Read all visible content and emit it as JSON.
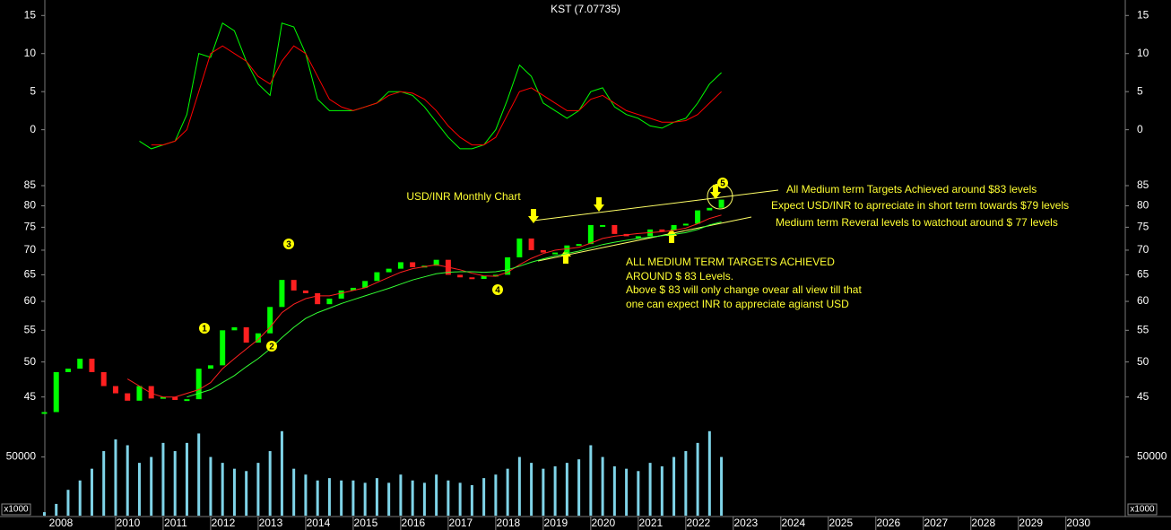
{
  "chart_data": [
    {
      "type": "line",
      "title": "KST (7.07735)",
      "x": [
        2008.5,
        2008.75,
        2009,
        2009.25,
        2009.5,
        2009.75,
        2010,
        2010.25,
        2010.5,
        2010.75,
        2011,
        2011.25,
        2011.5,
        2011.75,
        2012,
        2012.25,
        2012.5,
        2012.75,
        2013,
        2013.25,
        2013.5,
        2013.75,
        2014,
        2014.25,
        2014.5,
        2014.75,
        2015,
        2015.25,
        2015.5,
        2015.75,
        2016,
        2016.25,
        2016.5,
        2016.75,
        2017,
        2017.25,
        2017.5,
        2017.75,
        2018,
        2018.25,
        2018.5,
        2018.75,
        2019,
        2019.25,
        2019.5,
        2019.75,
        2020,
        2020.25,
        2020.5,
        2020.75,
        2021,
        2021.25,
        2021.5,
        2021.75,
        2022,
        2022.25,
        2022.5,
        2022.75
      ],
      "series": [
        {
          "color": "#00ff00",
          "values": [
            null,
            null,
            null,
            null,
            null,
            null,
            null,
            null,
            -1.5,
            -2.5,
            -2,
            -1.5,
            2,
            10,
            9.5,
            14,
            13,
            9,
            6,
            4.5,
            14,
            13.5,
            10,
            4,
            2.5,
            2.5,
            2.5,
            3,
            3.5,
            5,
            5,
            4.5,
            3,
            1,
            -1,
            -2.5,
            -2.5,
            -2,
            0,
            4,
            8.5,
            7,
            3.5,
            2.5,
            1.5,
            2.5,
            5,
            5.5,
            3,
            2,
            1.5,
            0.5,
            0.2,
            1,
            1.5,
            3.5,
            6,
            7.5
          ]
        },
        {
          "color": "#ff0000",
          "values": [
            null,
            null,
            null,
            null,
            null,
            null,
            null,
            null,
            null,
            -2,
            -2,
            -1.5,
            0,
            5,
            10,
            11,
            10,
            9,
            7,
            6,
            9,
            11,
            10,
            7,
            4,
            3,
            2.5,
            3,
            3.5,
            4.5,
            5,
            4.8,
            4,
            2.5,
            0.5,
            -1,
            -2,
            -2,
            -1,
            2,
            5,
            5.5,
            4.5,
            3.5,
            2.5,
            2.5,
            4,
            4.5,
            3.5,
            2.5,
            2,
            1.5,
            1,
            1,
            1.2,
            2,
            3.5,
            5
          ]
        }
      ],
      "xlim": [
        2008.51,
        2031.25
      ],
      "ylim": [
        -4.4,
        16.8
      ],
      "yticks": [
        0,
        5,
        10,
        15
      ]
    },
    {
      "type": "candlestick",
      "title": "USD/INR Monthly Chart",
      "x": [
        2008.5,
        2008.75,
        2009,
        2009.25,
        2009.5,
        2009.75,
        2010,
        2010.25,
        2010.5,
        2010.75,
        2011,
        2011.25,
        2011.5,
        2011.75,
        2012,
        2012.25,
        2012.5,
        2012.75,
        2013,
        2013.25,
        2013.5,
        2013.75,
        2014,
        2014.25,
        2014.5,
        2014.75,
        2015,
        2015.25,
        2015.5,
        2015.75,
        2016,
        2016.25,
        2016.5,
        2016.75,
        2017,
        2017.25,
        2017.5,
        2017.75,
        2018,
        2018.25,
        2018.5,
        2018.75,
        2019,
        2019.25,
        2019.5,
        2019.75,
        2020,
        2020.25,
        2020.5,
        2020.75,
        2021,
        2021.25,
        2021.5,
        2021.75,
        2022,
        2022.25,
        2022.5,
        2022.75
      ],
      "values": [
        43,
        48.5,
        49,
        50.5,
        48.5,
        46.5,
        45.5,
        44.5,
        46.5,
        44.8,
        45,
        44.6,
        44.7,
        49,
        49.5,
        55,
        55.5,
        53,
        54.5,
        59,
        64,
        62,
        61.5,
        59.5,
        60.5,
        62,
        62.5,
        63.8,
        65.5,
        66.2,
        67.5,
        66.5,
        66.8,
        68,
        65,
        64.5,
        64.2,
        64.8,
        65,
        68.5,
        72.5,
        70,
        69.5,
        69.5,
        71,
        71.3,
        75.5,
        75.5,
        73.5,
        73,
        73,
        74.5,
        74.3,
        75.5,
        75.8,
        78.9,
        79.5,
        81.5
      ],
      "up_color": "#00ff00",
      "down_color": "#ff2020",
      "overlays": [
        {
          "color": "#ff2020",
          "values": [
            null,
            null,
            null,
            null,
            null,
            null,
            null,
            47.5,
            46.5,
            45.5,
            45,
            45,
            45.5,
            46,
            47,
            49,
            50.5,
            52,
            53.5,
            55.5,
            58,
            59.5,
            60.5,
            61,
            61,
            61.5,
            62,
            62.5,
            63.5,
            64.5,
            65.5,
            66.2,
            66.6,
            67,
            66.5,
            66,
            65.3,
            64.8,
            64.7,
            65.5,
            67,
            68.3,
            69.3,
            70,
            70.3,
            70.6,
            71.5,
            72.5,
            73,
            73.3,
            73.6,
            73.8,
            74,
            74.3,
            74.8,
            75.8,
            77,
            77.8
          ]
        },
        {
          "color": "#33ff33",
          "values": [
            null,
            null,
            null,
            null,
            null,
            null,
            null,
            null,
            null,
            null,
            null,
            null,
            45,
            45.5,
            46,
            47,
            48,
            49.3,
            50.5,
            52,
            53.8,
            55.5,
            57,
            58,
            58.8,
            59.6,
            60.3,
            61,
            61.7,
            62.4,
            63.2,
            64,
            64.6,
            65.2,
            65.5,
            65.6,
            65.6,
            65.5,
            65.6,
            66,
            66.7,
            67.5,
            68.2,
            68.8,
            69.3,
            69.8,
            70.5,
            71.2,
            71.7,
            72.1,
            72.5,
            72.8,
            73.1,
            73.4,
            73.8,
            74.5,
            75.5,
            76.2
          ]
        }
      ],
      "log_scale": true,
      "xlim": [
        2008.51,
        2031.25
      ],
      "ylim": [
        41.8,
        87.8
      ],
      "yticks": [
        45,
        50,
        55,
        60,
        65,
        70,
        75,
        80,
        85
      ],
      "wave_labels": [
        "1",
        "2",
        "3",
        "4",
        "5"
      ],
      "annotations": [
        "All Medium term Targets Achieved around $83 levels",
        "Expect USD/INR to aprreciate in short term towards $79 levels",
        "Medium term Reveral levels to watchout around $ 77 levels"
      ],
      "note_lines": [
        "ALL MEDIUM TERM TARGETS ACHIEVED",
        "AROUND $ 83 Levels.",
        "Above $ 83 will only change ovear all view till that",
        "one can expect INR to appreciate agianst USD"
      ]
    },
    {
      "type": "bar",
      "unit_label": "x1000",
      "color": "#7fd4e8",
      "x": [
        2008.5,
        2008.75,
        2009,
        2009.25,
        2009.5,
        2009.75,
        2010,
        2010.25,
        2010.5,
        2010.75,
        2011,
        2011.25,
        2011.5,
        2011.75,
        2012,
        2012.25,
        2012.5,
        2012.75,
        2013,
        2013.25,
        2013.5,
        2013.75,
        2014,
        2014.25,
        2014.5,
        2014.75,
        2015,
        2015.25,
        2015.5,
        2015.75,
        2016,
        2016.25,
        2016.5,
        2016.75,
        2017,
        2017.25,
        2017.5,
        2017.75,
        2018,
        2018.25,
        2018.5,
        2018.75,
        2019,
        2019.25,
        2019.5,
        2019.75,
        2020,
        2020.25,
        2020.5,
        2020.75,
        2021,
        2021.25,
        2021.5,
        2021.75,
        2022,
        2022.25,
        2022.5,
        2022.75
      ],
      "values": [
        3000,
        10000,
        22000,
        30000,
        40000,
        55000,
        65000,
        60000,
        45000,
        50000,
        62000,
        55000,
        62000,
        70000,
        50000,
        45000,
        40000,
        38000,
        45000,
        55000,
        72000,
        40000,
        35000,
        30000,
        32000,
        30000,
        30000,
        28000,
        32000,
        28000,
        35000,
        30000,
        28000,
        35000,
        30000,
        28000,
        26000,
        32000,
        35000,
        40000,
        50000,
        45000,
        40000,
        42000,
        45000,
        48000,
        60000,
        50000,
        42000,
        40000,
        38000,
        45000,
        42000,
        50000,
        55000,
        62000,
        72000,
        50000
      ],
      "xlim": [
        2008.51,
        2031.25
      ],
      "ylim": [
        0,
        72600
      ],
      "yticks": [
        50000
      ],
      "xticks": [
        2008,
        2010,
        2011,
        2012,
        2013,
        2014,
        2015,
        2016,
        2017,
        2018,
        2019,
        2020,
        2021,
        2022,
        2023,
        2024,
        2025,
        2026,
        2027,
        2028,
        2029,
        2030
      ]
    }
  ]
}
